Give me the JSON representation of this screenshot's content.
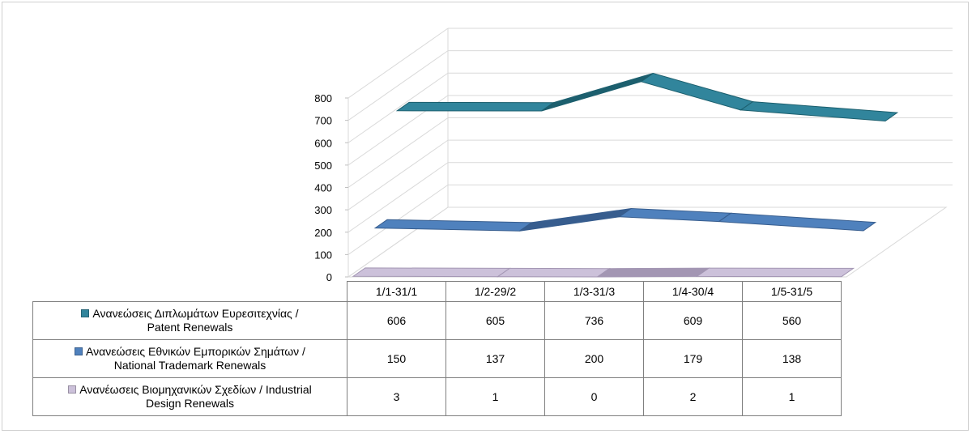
{
  "chart_data": {
    "type": "line",
    "style": "3d-ribbon",
    "categories": [
      "1/1-31/1",
      "1/2-29/2",
      "1/3-31/3",
      "1/4-30/4",
      "1/5-31/5"
    ],
    "series": [
      {
        "name_line1": "Ανανεώσεις Διπλωμάτων Ευρεσιτεχνίας  /",
        "name_line2": "Patent Renewals",
        "values": [
          606,
          605,
          736,
          609,
          560
        ],
        "color": "#2e7d8c",
        "top_color": "#31859c",
        "side_color": "#1c5f6e"
      },
      {
        "name_line1": "Ανανεώσεις Εθνικών Εμπορικών Σημάτων /",
        "name_line2": "National Trademark Renewals",
        "values": [
          150,
          137,
          200,
          179,
          138
        ],
        "color": "#4f81bd",
        "top_color": "#4f81bd",
        "side_color": "#375d8e"
      },
      {
        "name_line1": "Ανανέωσεις Βιομηχανικών Σχεδίων / Industrial",
        "name_line2": "Design Renewals",
        "values": [
          3,
          1,
          0,
          2,
          1
        ],
        "color": "#ccc1da",
        "top_color": "#ccc1da",
        "side_color": "#a396b3"
      }
    ],
    "yticks": [
      0,
      100,
      200,
      300,
      400,
      500,
      600,
      700,
      800
    ],
    "ylim": [
      0,
      800
    ],
    "grid": true,
    "legend": "data-table"
  }
}
